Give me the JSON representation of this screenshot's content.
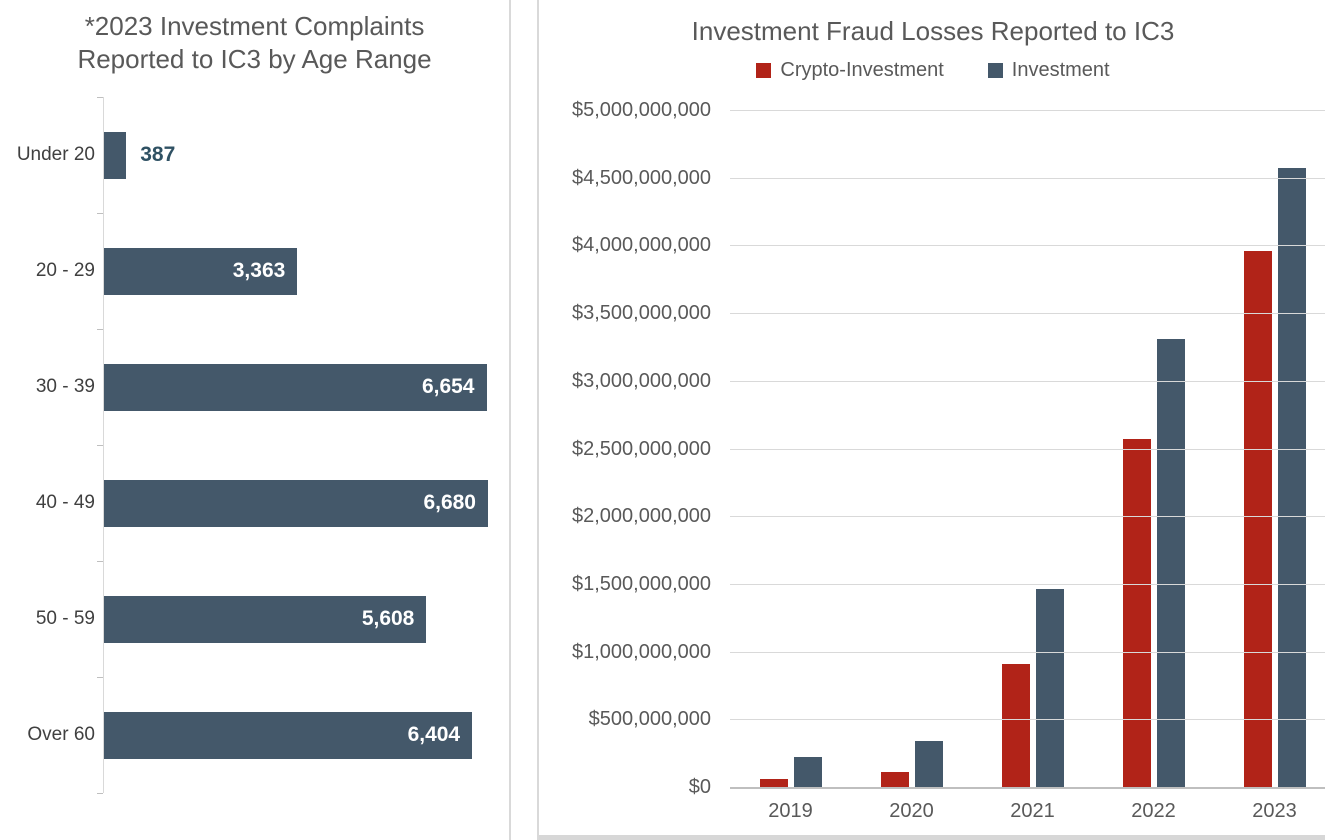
{
  "colors": {
    "bar_slate": "#44586A",
    "bar_red": "#B12318",
    "title_gray": "#595959",
    "category_label": "#404040",
    "outside_value_label": "#2F5163",
    "inside_value_label": "#FFFFFF",
    "gridline": "#D9D9D9",
    "axis_line": "#BFBFBF",
    "panel_divider": "#D9D9D9"
  },
  "chart_data": [
    {
      "type": "bar",
      "orientation": "horizontal",
      "title": "*2023 Investment Complaints Reported to IC3 by Age Range",
      "title_lines": [
        "*2023 Investment Complaints",
        "Reported to IC3 by Age Range"
      ],
      "categories": [
        "Under 20",
        "20 - 29",
        "30 - 39",
        "40 - 49",
        "50 - 59",
        "Over 60"
      ],
      "values": [
        387,
        3363,
        6654,
        6680,
        5608,
        6404
      ],
      "value_labels": [
        "387",
        "3,363",
        "6,654",
        "6,680",
        "5,608",
        "6,404"
      ],
      "xlim": [
        0,
        6680
      ],
      "grid": false,
      "data_labels": true,
      "bar_color": "#44586A"
    },
    {
      "type": "bar",
      "orientation": "vertical",
      "title": "Investment Fraud Losses Reported to IC3",
      "categories": [
        "2019",
        "2020",
        "2021",
        "2022",
        "2023"
      ],
      "series": [
        {
          "name": "Crypto-Investment",
          "color": "#B12318",
          "values": [
            60000000,
            110000000,
            907000000,
            2570000000,
            3960000000
          ]
        },
        {
          "name": "Investment",
          "color": "#44586A",
          "values": [
            223000000,
            337000000,
            1460000000,
            3310000000,
            4570000000
          ]
        }
      ],
      "ylim": [
        0,
        5000000000
      ],
      "y_tick_labels": [
        "$5,000,000,000",
        "$4,500,000,000",
        "$4,000,000,000",
        "$3,500,000,000",
        "$3,000,000,000",
        "$2,500,000,000",
        "$2,000,000,000",
        "$1,500,000,000",
        "$1,000,000,000",
        "$500,000,000",
        "$0"
      ],
      "legend_position": "top",
      "grid": true
    }
  ]
}
